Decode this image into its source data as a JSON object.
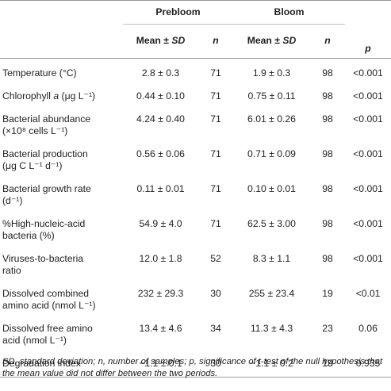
{
  "header": {
    "prebloom": "Prebloom",
    "bloom": "Bloom",
    "mean_sd_prefix": "Mean ± ",
    "sd": "SD",
    "n": "n",
    "p": "p"
  },
  "rows": [
    {
      "label": "Temperature (°C)",
      "label2": "",
      "pre_mean": "2.8 ± 0.3",
      "pre_n": "71",
      "bloom_mean": "1.9 ± 0.3",
      "bloom_n": "98",
      "p": "<0.001"
    },
    {
      "label": "Chlorophyll a (μg L⁻¹)",
      "label2": "",
      "pre_mean": "0.44 ± 0.10",
      "pre_n": "71",
      "bloom_mean": "0.75 ± 0.11",
      "bloom_n": "98",
      "p": "<0.001"
    },
    {
      "label": "Bacterial abundance",
      "label2": "(×10⁸ cells L⁻¹)",
      "pre_mean": "4.24 ± 0.40",
      "pre_n": "71",
      "bloom_mean": "6.01 ± 0.26",
      "bloom_n": "98",
      "p": "<0.001"
    },
    {
      "label": "Bacterial production",
      "label2": "(μg C L⁻¹ d⁻¹)",
      "pre_mean": "0.56 ± 0.06",
      "pre_n": "71",
      "bloom_mean": "0.71 ± 0.09",
      "bloom_n": "98",
      "p": "<0.001"
    },
    {
      "label": "Bacterial growth rate",
      "label2": "(d⁻¹)",
      "pre_mean": "0.11 ± 0.01",
      "pre_n": "71",
      "bloom_mean": "0.10 ± 0.01",
      "bloom_n": "98",
      "p": "<0.001"
    },
    {
      "label": "%High-nucleic-acid",
      "label2": "bacteria (%)",
      "pre_mean": "54.9 ± 4.0",
      "pre_n": "71",
      "bloom_mean": "62.5 ± 3.00",
      "bloom_n": "98",
      "p": "<0.001"
    },
    {
      "label": "Viruses-to-bacteria",
      "label2": "ratio",
      "pre_mean": "12.0 ± 1.8",
      "pre_n": "52",
      "bloom_mean": "8.3 ± 1.1",
      "bloom_n": "98",
      "p": "<0.001"
    },
    {
      "label": "Dissolved combined",
      "label2": "amino acid (nmol L⁻¹)",
      "pre_mean": "232 ± 29.3",
      "pre_n": "30",
      "bloom_mean": "255 ± 23.4",
      "bloom_n": "19",
      "p": "<0.01"
    },
    {
      "label": "Dissolved free amino",
      "label2": "acid (nmol L⁻¹)",
      "pre_mean": "13.4 ± 4.6",
      "pre_n": "34",
      "bloom_mean": "11.3 ± 4.3",
      "bloom_n": "23",
      "p": "0.06"
    },
    {
      "label": "Degradation index",
      "label2": "",
      "pre_mean": "−1.1 ± 0.1",
      "pre_n": "30",
      "bloom_mean": "−1.1 ± 0.2",
      "bloom_n": "19",
      "p": "0.935"
    }
  ],
  "footnote": "SD, standard deviation; n, number of samples; p, significance of t-test of the null hypothesis that the mean value did not differ between the two periods."
}
